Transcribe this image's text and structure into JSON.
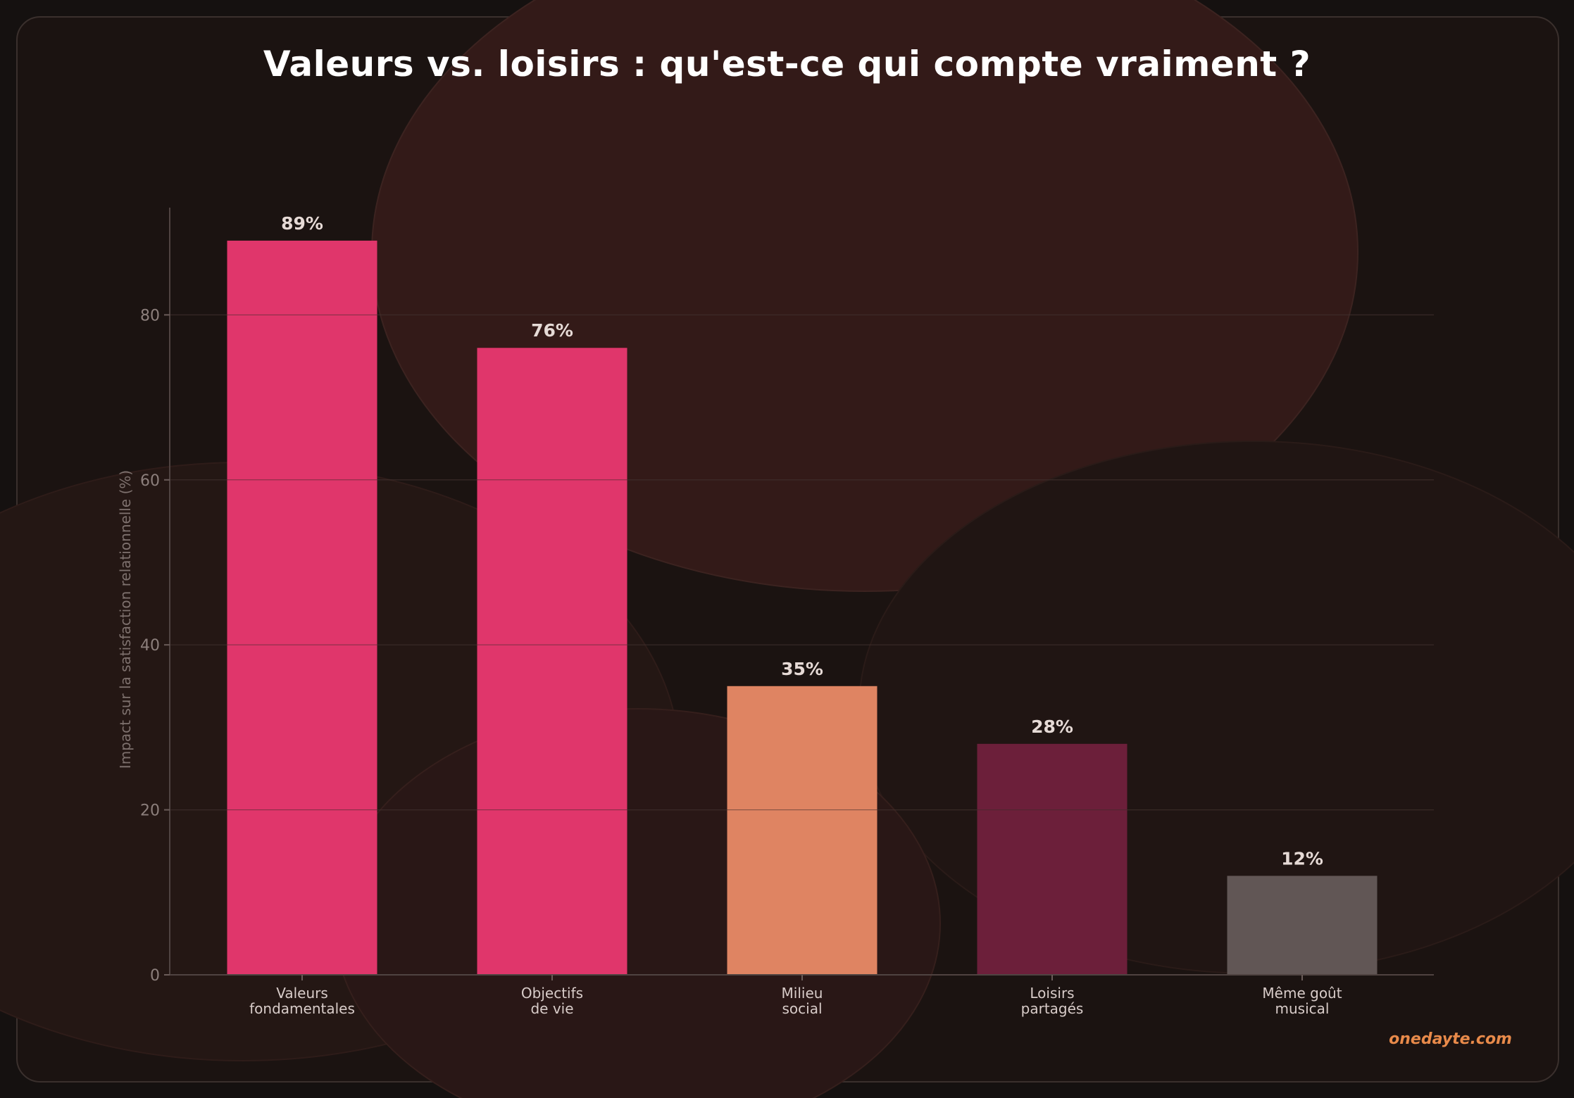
{
  "chart_data": {
    "type": "bar",
    "title": "Valeurs vs. loisirs : qu'est-ce qui compte vraiment ?",
    "ylabel": "Impact sur la satisfaction relationnelle (%)",
    "xlabel": "",
    "ylim": [
      0,
      93
    ],
    "yticks": [
      0,
      20,
      40,
      60,
      80
    ],
    "grid": true,
    "categories": [
      [
        "Valeurs",
        "fondamentales"
      ],
      [
        "Objectifs",
        "de vie"
      ],
      [
        "Milieu",
        "social"
      ],
      [
        "Loisirs",
        "partagés"
      ],
      [
        "Même goût",
        "musical"
      ]
    ],
    "values": [
      89,
      76,
      35,
      28,
      12
    ],
    "value_labels": [
      "89%",
      "76%",
      "35%",
      "28%",
      "12%"
    ],
    "colors": [
      "#e0366b",
      "#e0366b",
      "#df8462",
      "#6c1f3a",
      "#615655"
    ]
  },
  "footer": {
    "brand": "onedayte.com"
  },
  "theme": {
    "background": "#1b1311",
    "accent": "#e0366b",
    "brand_color": "#e88a4a"
  }
}
